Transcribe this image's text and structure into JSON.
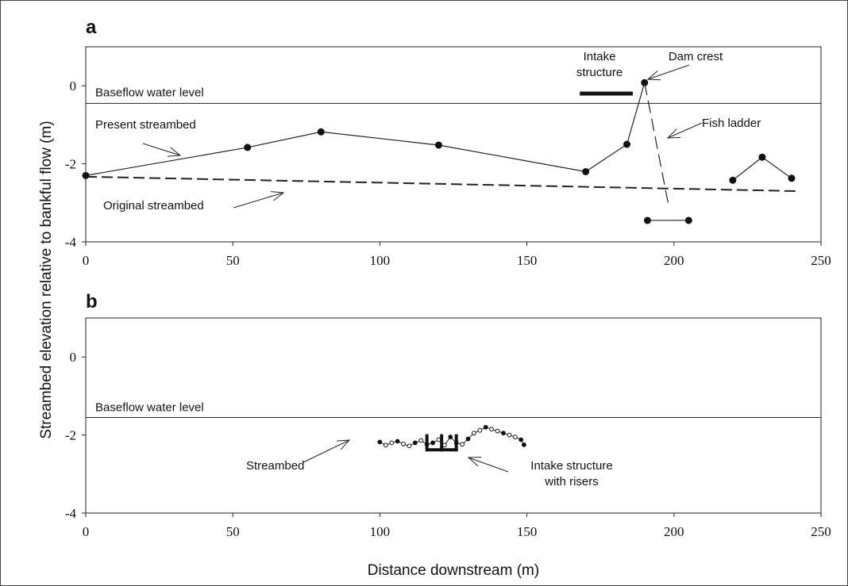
{
  "chart_data": [
    {
      "panel": "a",
      "type": "line",
      "xlim": [
        0,
        250
      ],
      "ylim": [
        -4,
        1
      ],
      "xticks": [
        "0",
        "50",
        "100",
        "150",
        "200",
        "250"
      ],
      "yticks": [
        "0",
        "-2",
        "-4"
      ],
      "baseflow_level": -0.45,
      "present_streambed": {
        "x": [
          0,
          55,
          80,
          120,
          170,
          184,
          190,
          191,
          205,
          220,
          230,
          240
        ],
        "y": [
          -2.3,
          -1.58,
          -1.18,
          -1.52,
          -2.2,
          -1.5,
          0.08,
          -3.45,
          -3.45,
          -2.42,
          -1.83,
          -2.37
        ],
        "segments": [
          [
            0,
            7
          ],
          [
            7,
            9
          ],
          [
            9,
            12
          ]
        ]
      },
      "original_streambed": {
        "x": [
          0,
          242
        ],
        "y": [
          -2.33,
          -2.7
        ]
      },
      "fish_ladder": {
        "x": [
          190,
          198
        ],
        "y": [
          0.08,
          -3.0
        ]
      },
      "intake_structure": {
        "x": [
          168,
          186
        ],
        "y": [
          -0.2,
          -0.2
        ]
      },
      "annotations": {
        "baseflow": "Baseflow water level",
        "present": "Present streambed",
        "original": "Original streambed",
        "intake_line1": "Intake",
        "intake_line2": "structure",
        "dam": "Dam crest",
        "fish": "Fish ladder"
      }
    },
    {
      "panel": "b",
      "type": "line",
      "xlim": [
        0,
        250
      ],
      "ylim": [
        -4,
        1
      ],
      "xticks": [
        "0",
        "50",
        "100",
        "150",
        "200",
        "250"
      ],
      "yticks": [
        "0",
        "-2",
        "-4"
      ],
      "baseflow_level": -1.55,
      "streambed": {
        "x": [
          100,
          102,
          104,
          106,
          108,
          110,
          112,
          114,
          116,
          118,
          120,
          122,
          124,
          126,
          128,
          130,
          132,
          134,
          136,
          138,
          140,
          142,
          144,
          146,
          148,
          149
        ],
        "y": [
          -2.18,
          -2.26,
          -2.2,
          -2.16,
          -2.23,
          -2.28,
          -2.2,
          -2.14,
          -2.24,
          -2.2,
          -2.12,
          -2.26,
          -2.05,
          -2.2,
          -2.24,
          -2.1,
          -1.95,
          -1.88,
          -1.8,
          -1.85,
          -1.9,
          -1.95,
          -2.0,
          -2.05,
          -2.12,
          -2.25
        ]
      },
      "intake_with_risers": {
        "base_y": -2.38,
        "x_start": 116,
        "x_end": 126,
        "risers_x": [
          116,
          121,
          126
        ],
        "riser_top_y": -1.98
      },
      "annotations": {
        "baseflow": "Baseflow water level",
        "streambed": "Streambed",
        "intake_line1": "Intake structure",
        "intake_line2": "with risers"
      }
    }
  ],
  "ylabel": "Streambed elevation relative to bankful flow (m)",
  "xlabel": "Distance downstream (m)"
}
